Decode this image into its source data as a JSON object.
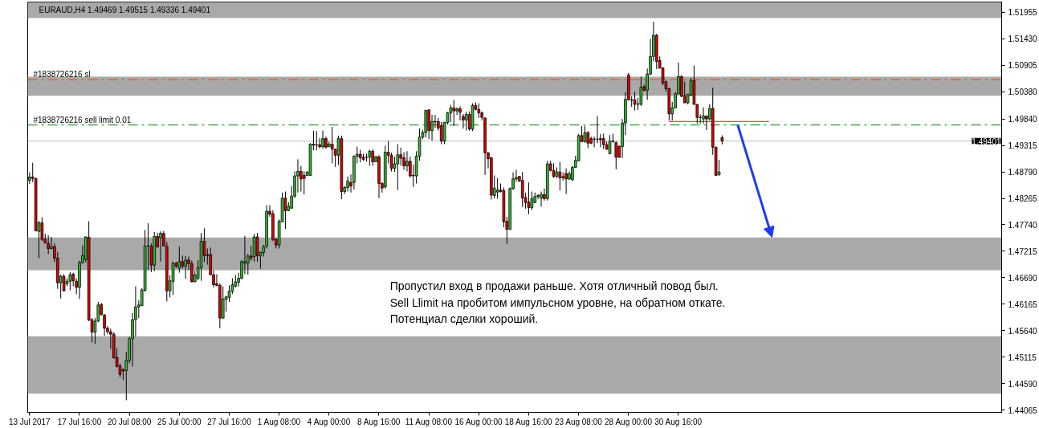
{
  "chart_data": {
    "type": "candlestick",
    "title": "EURAUD,H4 1.49469 1.49515 1.49336 1.49401",
    "categories": [
      "13 Jul 2017",
      null,
      null,
      null,
      null,
      null,
      null,
      null,
      null,
      null,
      null,
      null,
      null,
      null,
      null,
      null,
      "17 Jul 16:00",
      null,
      null,
      null,
      null,
      null,
      null,
      null,
      null,
      null,
      null,
      null,
      null,
      null,
      null,
      null,
      "20 Jul 08:00",
      null,
      null,
      null,
      null,
      null,
      null,
      null,
      null,
      null,
      null,
      null,
      null,
      null,
      null,
      null,
      "25 Jul 00:00",
      null,
      null,
      null,
      null,
      null,
      null,
      null,
      null,
      null,
      null,
      null,
      null,
      null,
      null,
      null,
      "27 Jul 16:00",
      null,
      null,
      null,
      null,
      null,
      null,
      null,
      null,
      null,
      null,
      null,
      null,
      null,
      null,
      null,
      "1 Aug 08:00",
      null,
      null,
      null,
      null,
      null,
      null,
      null,
      null,
      null,
      null,
      null,
      null,
      null,
      null,
      null,
      "4 Aug 00:00",
      null,
      null,
      null,
      null,
      null,
      null,
      null,
      null,
      null,
      null,
      null,
      null,
      null,
      null,
      null,
      "8 Aug 16:00",
      null,
      null,
      null,
      null,
      null,
      null,
      null,
      null,
      null,
      null,
      null,
      null,
      null,
      null,
      null,
      "11 Aug 08:00",
      null,
      null,
      null,
      null,
      null,
      null,
      null,
      null,
      null,
      null,
      null,
      null,
      null,
      null,
      null,
      "16 Aug 00:00",
      null,
      null,
      null,
      null,
      null,
      null,
      null,
      null,
      null,
      null,
      null,
      null,
      null,
      null,
      null,
      "18 Aug 16:00",
      null,
      null,
      null,
      null,
      null,
      null,
      null,
      null,
      null,
      null,
      null,
      null,
      null,
      null,
      null,
      "23 Aug 08:00",
      null,
      null,
      null,
      null,
      null,
      null,
      null,
      null,
      null,
      null,
      null,
      null,
      null,
      null,
      null,
      "28 Aug 00:00",
      null,
      null,
      null,
      null,
      null,
      null,
      null,
      null,
      null,
      null,
      null,
      null,
      null,
      null,
      null,
      "30 Aug 16:00",
      null,
      null,
      null,
      null,
      null,
      null,
      null,
      null,
      null,
      null,
      null,
      null,
      null,
      null,
      null,
      null,
      null,
      null,
      null,
      null,
      null,
      null,
      null,
      null,
      null,
      null,
      null,
      null,
      null,
      null,
      null,
      null,
      null,
      null,
      null,
      null,
      null,
      null,
      null,
      null,
      null,
      null,
      null,
      null,
      null,
      null,
      null,
      null,
      null,
      null,
      null,
      null,
      null,
      null,
      null,
      null,
      null,
      null,
      null,
      null,
      null,
      null,
      null,
      null,
      null,
      null,
      null,
      null,
      null,
      null,
      null,
      null,
      null,
      null,
      null,
      null,
      null,
      null,
      null,
      null,
      null,
      null,
      null,
      null,
      null,
      null,
      null,
      null,
      null,
      null,
      null,
      null,
      null,
      null,
      null,
      null,
      null,
      null,
      null,
      null,
      null,
      null,
      null
    ],
    "ohlc": [
      [
        1.4862,
        1.4878,
        1.4855,
        1.4869
      ],
      [
        1.4869,
        1.4897,
        1.4859,
        1.4866
      ],
      [
        1.4866,
        1.4867,
        1.4761,
        1.4762
      ],
      [
        1.4761,
        1.4782,
        1.4708,
        1.4778
      ],
      [
        1.4778,
        1.4789,
        1.4742,
        1.4745
      ],
      [
        1.4745,
        1.4756,
        1.4737,
        1.4738
      ],
      [
        1.4737,
        1.4753,
        1.4716,
        1.4727
      ],
      [
        1.4727,
        1.475,
        1.4725,
        1.4731
      ],
      [
        1.4731,
        1.4737,
        1.47,
        1.4708
      ],
      [
        1.4708,
        1.472,
        1.4647,
        1.4659
      ],
      [
        1.4659,
        1.4675,
        1.4628,
        1.4672
      ],
      [
        1.4672,
        1.4676,
        1.4642,
        1.4643
      ],
      [
        1.4657,
        1.4668,
        1.4652,
        1.4662
      ],
      [
        1.4662,
        1.468,
        1.4644,
        1.4675
      ],
      [
        1.4676,
        1.4679,
        1.4652,
        1.4663
      ],
      [
        1.4662,
        1.4668,
        1.4636,
        1.465
      ],
      [
        1.465,
        1.4703,
        1.4627,
        1.4699
      ],
      [
        1.4699,
        1.4733,
        1.4697,
        1.4713
      ],
      [
        1.4705,
        1.4751,
        1.47,
        1.475
      ],
      [
        1.4749,
        1.4781,
        1.4583,
        1.4585
      ],
      [
        1.4586,
        1.4589,
        1.4541,
        1.4561
      ],
      [
        1.4561,
        1.4589,
        1.4538,
        1.4583
      ],
      [
        1.4583,
        1.4621,
        1.4581,
        1.4615
      ],
      [
        1.4616,
        1.4619,
        1.4594,
        1.4596
      ],
      [
        1.4595,
        1.4597,
        1.4554,
        1.4569
      ],
      [
        1.4569,
        1.4573,
        1.4557,
        1.4562
      ],
      [
        1.4562,
        1.4568,
        1.4528,
        1.4557
      ],
      [
        1.4557,
        1.4561,
        1.4509,
        1.451
      ],
      [
        1.4511,
        1.4529,
        1.4491,
        1.4493
      ],
      [
        1.4494,
        1.4499,
        1.4472,
        1.4477
      ],
      [
        1.4487,
        1.4489,
        1.4466,
        1.4484
      ],
      [
        1.4485,
        1.4522,
        1.4426,
        1.4505
      ],
      [
        1.4505,
        1.4552,
        1.4499,
        1.4548
      ],
      [
        1.4548,
        1.4599,
        1.4493,
        1.4586
      ],
      [
        1.4586,
        1.4652,
        1.4552,
        1.4611
      ],
      [
        1.4611,
        1.4624,
        1.4589,
        1.4615
      ],
      [
        1.4614,
        1.4648,
        1.4613,
        1.4645
      ],
      [
        1.4644,
        1.4764,
        1.4641,
        1.4732
      ],
      [
        1.4732,
        1.4777,
        1.4684,
        1.4732
      ],
      [
        1.4732,
        1.4737,
        1.468,
        1.4694
      ],
      [
        1.4694,
        1.476,
        1.4682,
        1.4751
      ],
      [
        1.4751,
        1.4758,
        1.4729,
        1.473
      ],
      [
        1.4748,
        1.4761,
        1.4701,
        1.4757
      ],
      [
        1.4757,
        1.4762,
        1.4731,
        1.4732
      ],
      [
        1.4731,
        1.474,
        1.4622,
        1.4643
      ],
      [
        1.4643,
        1.4674,
        1.463,
        1.4663
      ],
      [
        1.4662,
        1.4701,
        1.4635,
        1.4698
      ],
      [
        1.4698,
        1.47,
        1.4689,
        1.4692
      ],
      [
        1.4688,
        1.4731,
        1.4679,
        1.4701
      ],
      [
        1.4701,
        1.4713,
        1.4687,
        1.4692
      ],
      [
        1.4692,
        1.4712,
        1.4667,
        1.4704
      ],
      [
        1.4704,
        1.4711,
        1.4684,
        1.4697
      ],
      [
        1.4697,
        1.4703,
        1.466,
        1.4661
      ],
      [
        1.4661,
        1.4684,
        1.466,
        1.4675
      ],
      [
        1.4668,
        1.4704,
        1.4664,
        1.4689
      ],
      [
        1.4689,
        1.4758,
        1.4663,
        1.4741
      ],
      [
        1.4741,
        1.4767,
        1.47,
        1.4713
      ],
      [
        1.4715,
        1.4727,
        1.4695,
        1.4713
      ],
      [
        1.4715,
        1.4729,
        1.4674,
        1.4675
      ],
      [
        1.4675,
        1.4684,
        1.465,
        1.4655
      ],
      [
        1.4657,
        1.4676,
        1.4652,
        1.4654
      ],
      [
        1.4654,
        1.4658,
        1.4569,
        1.4589
      ],
      [
        1.4589,
        1.4652,
        1.4588,
        1.4627
      ],
      [
        1.4626,
        1.4633,
        1.4602,
        1.4631
      ],
      [
        1.463,
        1.4654,
        1.4621,
        1.4642
      ],
      [
        1.4642,
        1.4668,
        1.4637,
        1.4655
      ],
      [
        1.4652,
        1.4674,
        1.465,
        1.4661
      ],
      [
        1.466,
        1.4679,
        1.4652,
        1.4668
      ],
      [
        1.4668,
        1.4704,
        1.4666,
        1.4701
      ],
      [
        1.4698,
        1.4752,
        1.4676,
        1.4701
      ],
      [
        1.4698,
        1.4716,
        1.4675,
        1.4712
      ],
      [
        1.4712,
        1.4732,
        1.4703,
        1.4708
      ],
      [
        1.4711,
        1.4756,
        1.4701,
        1.475
      ],
      [
        1.475,
        1.4758,
        1.4701,
        1.4713
      ],
      [
        1.4713,
        1.4721,
        1.4687,
        1.4719
      ],
      [
        1.4719,
        1.4734,
        1.4711,
        1.4731
      ],
      [
        1.4732,
        1.4813,
        1.4727,
        1.4801
      ],
      [
        1.4801,
        1.4813,
        1.479,
        1.4795
      ],
      [
        1.4796,
        1.4803,
        1.4742,
        1.4745
      ],
      [
        1.4745,
        1.4748,
        1.4727,
        1.4734
      ],
      [
        1.4734,
        1.4785,
        1.4727,
        1.4781
      ],
      [
        1.478,
        1.4838,
        1.478,
        1.4827
      ],
      [
        1.4827,
        1.484,
        1.4766,
        1.4802
      ],
      [
        1.4802,
        1.4819,
        1.4801,
        1.4811
      ],
      [
        1.4807,
        1.4851,
        1.4806,
        1.4831
      ],
      [
        1.4831,
        1.488,
        1.4827,
        1.4871
      ],
      [
        1.4871,
        1.4904,
        1.4838,
        1.488
      ],
      [
        1.488,
        1.4891,
        1.484,
        1.4865
      ],
      [
        1.4872,
        1.488,
        1.4834,
        1.4866
      ],
      [
        1.4872,
        1.488,
        1.4872,
        1.4879
      ],
      [
        1.4872,
        1.4936,
        1.4872,
        1.4934
      ],
      [
        1.4934,
        1.4961,
        1.4922,
        1.4932
      ],
      [
        1.4932,
        1.496,
        1.4922,
        1.4933
      ],
      [
        1.4933,
        1.4946,
        1.4925,
        1.4929
      ],
      [
        1.4929,
        1.4961,
        1.4925,
        1.4945
      ],
      [
        1.4945,
        1.4949,
        1.4925,
        1.4928
      ],
      [
        1.4929,
        1.4939,
        1.4928,
        1.4934
      ],
      [
        1.4934,
        1.4968,
        1.4896,
        1.4924
      ],
      [
        1.4924,
        1.4925,
        1.4889,
        1.4912
      ],
      [
        1.4912,
        1.4951,
        1.4893,
        1.4945
      ],
      [
        1.4945,
        1.4951,
        1.4825,
        1.484
      ],
      [
        1.484,
        1.4851,
        1.4835,
        1.4848
      ],
      [
        1.4848,
        1.487,
        1.484,
        1.4861
      ],
      [
        1.4858,
        1.4874,
        1.4838,
        1.4851
      ],
      [
        1.4858,
        1.4912,
        1.4844,
        1.491
      ],
      [
        1.491,
        1.4929,
        1.4896,
        1.4914
      ],
      [
        1.4914,
        1.4923,
        1.4898,
        1.4907
      ],
      [
        1.4908,
        1.4915,
        1.4901,
        1.4904
      ],
      [
        1.4908,
        1.4915,
        1.4899,
        1.4908
      ],
      [
        1.4908,
        1.4923,
        1.4891,
        1.492
      ],
      [
        1.492,
        1.4924,
        1.4891,
        1.4899
      ],
      [
        1.4899,
        1.4911,
        1.4898,
        1.4909
      ],
      [
        1.4909,
        1.4912,
        1.4827,
        1.4856
      ],
      [
        1.4856,
        1.4859,
        1.4838,
        1.4847
      ],
      [
        1.4849,
        1.4931,
        1.4846,
        1.4918
      ],
      [
        1.4918,
        1.494,
        1.4896,
        1.4912
      ],
      [
        1.4912,
        1.4917,
        1.488,
        1.4886
      ],
      [
        1.4886,
        1.4909,
        1.4879,
        1.4895
      ],
      [
        1.4895,
        1.4934,
        1.4843,
        1.4913
      ],
      [
        1.4913,
        1.4927,
        1.4892,
        1.4906
      ],
      [
        1.4907,
        1.4918,
        1.4883,
        1.4891
      ],
      [
        1.4891,
        1.492,
        1.488,
        1.49
      ],
      [
        1.49,
        1.4909,
        1.4868,
        1.4871
      ],
      [
        1.4872,
        1.4893,
        1.4849,
        1.4871
      ],
      [
        1.4871,
        1.492,
        1.4856,
        1.491
      ],
      [
        1.491,
        1.4965,
        1.4901,
        1.4948
      ],
      [
        1.4948,
        1.4962,
        1.4944,
        1.4957
      ],
      [
        1.4957,
        1.5002,
        1.4947,
        1.5001
      ],
      [
        1.5002,
        1.5003,
        1.4944,
        1.4961
      ],
      [
        1.4961,
        1.4992,
        1.4941,
        1.4979
      ],
      [
        1.4979,
        1.4992,
        1.4966,
        1.4978
      ],
      [
        1.4979,
        1.4986,
        1.4961,
        1.4966
      ],
      [
        1.4971,
        1.4978,
        1.4934,
        1.494
      ],
      [
        1.494,
        1.4978,
        1.4934,
        1.4977
      ],
      [
        1.4977,
        1.4998,
        1.4973,
        1.4996
      ],
      [
        1.4996,
        1.5012,
        1.4978,
        1.5006
      ],
      [
        1.5006,
        1.5022,
        1.497,
        1.5
      ],
      [
        1.5,
        1.5007,
        1.4992,
        1.5004
      ],
      [
        1.5004,
        1.5009,
        1.4981,
        1.4997
      ],
      [
        1.4989,
        1.4994,
        1.4965,
        1.4982
      ],
      [
        1.4982,
        1.4998,
        1.4961,
        1.4993
      ],
      [
        1.4993,
        1.4999,
        1.4961,
        1.4964
      ],
      [
        1.4964,
        1.5015,
        1.496,
        1.5011
      ],
      [
        1.5011,
        1.5017,
        1.5001,
        1.5003
      ],
      [
        1.5003,
        1.5015,
        1.4986,
        1.4996
      ],
      [
        1.4996,
        1.4999,
        1.4981,
        1.4987
      ],
      [
        1.4986,
        1.4987,
        1.4873,
        1.4917
      ],
      [
        1.4917,
        1.4918,
        1.4886,
        1.4905
      ],
      [
        1.4907,
        1.4908,
        1.4824,
        1.4833
      ],
      [
        1.4832,
        1.4872,
        1.4826,
        1.4847
      ],
      [
        1.4839,
        1.4867,
        1.4826,
        1.4843
      ],
      [
        1.4843,
        1.4856,
        1.4838,
        1.484
      ],
      [
        1.4842,
        1.4848,
        1.4769,
        1.478
      ],
      [
        1.4781,
        1.479,
        1.4736,
        1.4765
      ],
      [
        1.4765,
        1.4848,
        1.4764,
        1.4846
      ],
      [
        1.4846,
        1.4878,
        1.4843,
        1.4865
      ],
      [
        1.4865,
        1.4883,
        1.4859,
        1.4868
      ],
      [
        1.487,
        1.4871,
        1.4859,
        1.4861
      ],
      [
        1.4862,
        1.4879,
        1.4809,
        1.4827
      ],
      [
        1.4828,
        1.4838,
        1.4806,
        1.4818
      ],
      [
        1.4819,
        1.4858,
        1.4795,
        1.4808
      ],
      [
        1.4808,
        1.484,
        1.4803,
        1.4826
      ],
      [
        1.4818,
        1.4838,
        1.4817,
        1.483
      ],
      [
        1.483,
        1.4835,
        1.4825,
        1.4832
      ],
      [
        1.4827,
        1.484,
        1.481,
        1.4834
      ],
      [
        1.4834,
        1.4846,
        1.4822,
        1.4826
      ],
      [
        1.4826,
        1.4901,
        1.4822,
        1.4895
      ],
      [
        1.4895,
        1.4901,
        1.488,
        1.4882
      ],
      [
        1.4882,
        1.4896,
        1.4867,
        1.487
      ],
      [
        1.487,
        1.4888,
        1.4867,
        1.4879
      ],
      [
        1.4879,
        1.4899,
        1.4842,
        1.4867
      ],
      [
        1.4867,
        1.4878,
        1.4862,
        1.487
      ],
      [
        1.4876,
        1.4886,
        1.4835,
        1.4865
      ],
      [
        1.4865,
        1.488,
        1.4863,
        1.4875
      ],
      [
        1.4863,
        1.4891,
        1.4862,
        1.4888
      ],
      [
        1.4888,
        1.4911,
        1.4887,
        1.4902
      ],
      [
        1.4901,
        1.4954,
        1.4901,
        1.4951
      ],
      [
        1.4951,
        1.497,
        1.4939,
        1.4939
      ],
      [
        1.4939,
        1.497,
        1.4937,
        1.4957
      ],
      [
        1.4957,
        1.496,
        1.4926,
        1.4936
      ],
      [
        1.4945,
        1.4949,
        1.4934,
        1.4936
      ],
      [
        1.4944,
        1.4949,
        1.4928,
        1.4944
      ],
      [
        1.4944,
        1.499,
        1.4936,
        1.4944
      ],
      [
        1.4945,
        1.4954,
        1.4928,
        1.4943
      ],
      [
        1.4945,
        1.4955,
        1.4924,
        1.4933
      ],
      [
        1.4933,
        1.4939,
        1.4923,
        1.4924
      ],
      [
        1.4915,
        1.4952,
        1.4915,
        1.494
      ],
      [
        1.494,
        1.4955,
        1.4937,
        1.4939
      ],
      [
        1.4937,
        1.494,
        1.4884,
        1.4908
      ],
      [
        1.493,
        1.4931,
        1.4907,
        1.4908
      ],
      [
        1.4929,
        1.4984,
        1.4906,
        1.4976
      ],
      [
        1.4976,
        1.5037,
        1.4952,
        1.5023
      ],
      [
        1.5071,
        1.5075,
        1.5021,
        1.5022
      ],
      [
        1.5022,
        1.5029,
        1.5008,
        1.5021
      ],
      [
        1.5022,
        1.5038,
        1.5001,
        1.5013
      ],
      [
        1.5014,
        1.5026,
        1.5002,
        1.5013
      ],
      [
        1.5013,
        1.5068,
        1.501,
        1.5047
      ],
      [
        1.5048,
        1.5052,
        1.5039,
        1.5041
      ],
      [
        1.5041,
        1.5084,
        1.5022,
        1.5073
      ],
      [
        1.5073,
        1.5143,
        1.5071,
        1.5108
      ],
      [
        1.5108,
        1.5177,
        1.5099,
        1.515
      ],
      [
        1.515,
        1.5153,
        1.5083,
        1.5098
      ],
      [
        1.51,
        1.5108,
        1.5084,
        1.5085
      ],
      [
        1.5085,
        1.5087,
        1.5051,
        1.5055
      ],
      [
        1.5058,
        1.506,
        1.5038,
        1.5044
      ],
      [
        1.5044,
        1.5046,
        1.4981,
        1.4994
      ],
      [
        1.4994,
        1.5018,
        1.4981,
        1.5006
      ],
      [
        1.5006,
        1.5037,
        1.5005,
        1.5034
      ],
      [
        1.5034,
        1.5096,
        1.5033,
        1.5068
      ],
      [
        1.5068,
        1.5071,
        1.5027,
        1.5029
      ],
      [
        1.503,
        1.5058,
        1.5015,
        1.5016
      ],
      [
        1.5016,
        1.5034,
        1.5013,
        1.5033
      ],
      [
        1.5031,
        1.5065,
        1.5029,
        1.506
      ],
      [
        1.506,
        1.509,
        1.5012,
        1.5013
      ],
      [
        1.5013,
        1.5013,
        1.4975,
        1.4987
      ],
      [
        1.4987,
        1.4993,
        1.4975,
        1.4987
      ],
      [
        1.4984,
        1.5007,
        1.4975,
        1.499
      ],
      [
        1.499,
        1.4991,
        1.4962,
        1.4984
      ],
      [
        1.4984,
        1.5013,
        1.4981,
        1.5005
      ],
      [
        1.5005,
        1.5046,
        1.4913,
        1.4928
      ],
      [
        1.4928,
        1.4929,
        1.4871,
        1.4872
      ],
      [
        1.4873,
        1.4903,
        1.4872,
        1.4879
      ],
      [
        1.49469,
        1.49515,
        1.49336,
        1.49401
      ],
      null,
      null,
      null,
      null,
      null,
      null,
      null,
      null,
      null,
      null,
      null,
      null,
      null,
      null,
      null,
      null,
      null,
      null,
      null,
      null,
      null,
      null,
      null,
      null,
      null,
      null,
      null,
      null,
      null,
      null,
      null,
      null,
      null,
      null,
      null,
      null,
      null,
      null,
      null,
      null,
      null,
      null,
      null,
      null,
      null,
      null,
      null,
      null,
      null,
      null,
      null,
      null,
      null,
      null,
      null,
      null,
      null,
      null,
      null,
      null,
      null,
      null,
      null,
      null,
      null,
      null,
      null,
      null,
      null,
      null,
      null,
      null,
      null,
      null,
      null,
      null,
      null,
      null,
      null,
      null,
      null,
      null,
      null,
      null,
      null,
      null,
      null,
      null,
      null
    ],
    "colors": [
      "#33bb33",
      "#e00000",
      "#e00000",
      "#33bb33",
      "#e00000",
      "#e00000",
      "#e00000",
      "#33bb33",
      "#e00000",
      "#e00000",
      "#33bb33",
      "#e00000",
      "#33bb33",
      "#33bb33",
      "#e00000",
      "#e00000",
      "#33bb33",
      "#33bb33",
      "#33bb33",
      "#e00000",
      "#e00000",
      "#33bb33",
      "#33bb33",
      "#e00000",
      "#e00000",
      "#e00000",
      "#e00000",
      "#e00000",
      "#e00000",
      "#e00000",
      "#e00000",
      "#33bb33",
      "#33bb33",
      "#33bb33",
      "#33bb33",
      "#33bb33",
      "#33bb33",
      "#33bb33",
      "#000000",
      "#e00000",
      "#33bb33",
      "#e00000",
      "#33bb33",
      "#e00000",
      "#e00000",
      "#33bb33",
      "#33bb33",
      "#e00000",
      "#33bb33",
      "#e00000",
      "#33bb33",
      "#e00000",
      "#e00000",
      "#33bb33",
      "#33bb33",
      "#33bb33",
      "#e00000",
      "#e00000",
      "#e00000",
      "#e00000",
      "#e00000",
      "#e00000",
      "#33bb33",
      "#33bb33",
      "#33bb33",
      "#33bb33",
      "#33bb33",
      "#33bb33",
      "#33bb33",
      "#33bb33",
      "#33bb33",
      "#e00000",
      "#33bb33",
      "#e00000",
      "#33bb33",
      "#33bb33",
      "#33bb33",
      "#e00000",
      "#e00000",
      "#e00000",
      "#33bb33",
      "#33bb33",
      "#e00000",
      "#33bb33",
      "#33bb33",
      "#33bb33",
      "#33bb33",
      "#e00000",
      "#e00000",
      "#33bb33",
      "#33bb33",
      "#e00000",
      "#33bb33",
      "#e00000",
      "#33bb33",
      "#e00000",
      "#33bb33",
      "#e00000",
      "#e00000",
      "#33bb33",
      "#e00000",
      "#33bb33",
      "#33bb33",
      "#e00000",
      "#33bb33",
      "#33bb33",
      "#e00000",
      "#e00000",
      "#000000",
      "#33bb33",
      "#e00000",
      "#33bb33",
      "#e00000",
      "#e00000",
      "#33bb33",
      "#e00000",
      "#e00000",
      "#33bb33",
      "#33bb33",
      "#e00000",
      "#e00000",
      "#33bb33",
      "#e00000",
      "#e00000",
      "#33bb33",
      "#33bb33",
      "#33bb33",
      "#33bb33",
      "#e00000",
      "#33bb33",
      "#e00000",
      "#e00000",
      "#e00000",
      "#33bb33",
      "#33bb33",
      "#33bb33",
      "#e00000",
      "#33bb33",
      "#e00000",
      "#e00000",
      "#33bb33",
      "#e00000",
      "#33bb33",
      "#e00000",
      "#e00000",
      "#e00000",
      "#e00000",
      "#e00000",
      "#e00000",
      "#33bb33",
      "#33bb33",
      "#e00000",
      "#e00000",
      "#e00000",
      "#33bb33",
      "#33bb33",
      "#33bb33",
      "#e00000",
      "#e00000",
      "#e00000",
      "#e00000",
      "#33bb33",
      "#33bb33",
      "#33bb33",
      "#33bb33",
      "#e00000",
      "#33bb33",
      "#e00000",
      "#e00000",
      "#33bb33",
      "#e00000",
      "#33bb33",
      "#e00000",
      "#33bb33",
      "#33bb33",
      "#33bb33",
      "#33bb33",
      "#e00000",
      "#33bb33",
      "#e00000",
      "#e00000",
      "#000000",
      "#000000",
      "#e00000",
      "#e00000",
      "#e00000",
      "#33bb33",
      "#e00000",
      "#e00000",
      "#e00000",
      "#33bb33",
      "#33bb33",
      "#e00000",
      "#e00000",
      "#e00000",
      "#e00000",
      "#33bb33",
      "#e00000",
      "#33bb33",
      "#33bb33",
      "#33bb33",
      "#e00000",
      "#e00000",
      "#e00000",
      "#e00000",
      "#e00000",
      "#33bb33",
      "#33bb33",
      "#33bb33",
      "#e00000",
      "#e00000",
      "#33bb33",
      "#33bb33",
      "#e00000",
      "#e00000",
      "#000000",
      "#33bb33",
      "#e00000",
      "#33bb33",
      "#e00000",
      "#e00000",
      "#33bb33",
      "#e00000",
      null,
      null,
      null,
      null,
      null,
      null,
      null,
      null,
      null,
      null,
      null,
      null,
      null,
      null,
      null,
      null,
      null,
      null,
      null,
      null,
      null,
      null,
      null,
      null,
      null,
      null,
      null,
      null,
      null,
      null,
      null,
      null,
      null,
      null,
      null,
      null,
      null,
      null,
      null,
      null,
      null,
      null,
      null,
      null,
      null,
      null,
      null,
      null,
      null,
      null,
      null,
      null,
      null,
      null,
      null,
      null,
      null,
      null,
      null,
      null,
      null,
      null,
      null,
      null,
      null,
      null,
      null,
      null,
      null,
      null,
      null,
      null,
      null,
      null,
      null,
      null,
      null,
      null,
      null,
      null,
      null,
      null,
      null,
      null,
      null,
      null,
      null,
      null,
      null
    ],
    "series": [
      {
        "type": "line",
        "color": "#ff0000",
        "values": [
          null,
          null,
          null,
          null,
          null,
          null,
          null,
          null,
          null,
          null,
          null,
          null,
          null,
          null,
          null,
          null,
          null,
          null,
          null,
          null,
          null,
          null,
          null,
          null,
          null,
          null,
          null,
          null,
          null,
          null,
          null,
          null,
          null,
          null,
          null,
          null,
          null,
          null,
          null,
          null,
          null,
          null,
          null,
          null,
          null,
          null,
          null,
          null,
          null,
          null,
          null,
          null,
          null,
          null,
          null,
          null,
          null,
          null,
          null,
          null,
          null,
          null,
          null,
          null,
          null,
          null,
          null,
          null,
          null,
          null,
          null,
          null,
          null,
          null,
          null,
          null,
          null,
          null,
          null,
          null,
          null,
          null,
          null,
          null,
          null,
          null,
          null,
          null,
          null,
          null,
          null,
          null,
          null,
          null,
          null,
          null,
          null,
          null,
          null,
          null,
          null,
          null,
          null,
          null,
          null,
          null,
          null,
          null,
          null,
          null,
          null,
          null,
          null,
          null,
          null,
          null,
          null,
          null,
          null,
          null,
          null,
          null,
          null,
          null,
          null,
          null,
          null,
          null,
          null,
          null,
          null,
          null,
          null,
          null,
          null,
          null,
          null,
          null,
          null,
          null,
          null,
          null,
          null,
          null,
          null,
          null,
          null,
          null,
          null,
          null,
          null,
          null,
          null,
          null,
          null,
          null,
          null,
          null,
          null,
          null,
          null,
          null,
          null,
          null,
          null,
          null,
          null,
          null,
          null,
          null,
          null,
          null,
          null,
          null,
          null,
          null,
          null,
          null,
          null,
          null,
          null,
          null,
          null,
          null,
          null,
          null,
          null,
          null,
          null,
          null,
          null,
          null,
          null,
          null,
          null,
          null,
          null,
          null,
          null,
          null,
          null,
          null,
          null,
          null,
          null,
          1.4979,
          1.4979,
          1.4979,
          1.4979,
          1.4979,
          1.4979,
          1.4979,
          1.4979,
          1.4979,
          1.4979,
          1.4979,
          1.4979,
          1.4979,
          1.4979,
          1.4979,
          1.4979,
          1.4979,
          1.4979,
          1.4979,
          1.4979,
          1.4979,
          1.4979,
          1.4979,
          1.4979,
          1.4979,
          1.4979,
          1.4979,
          1.4979,
          1.4979,
          1.4979,
          1.4979,
          1.4979,
          1.4979,
          null,
          null,
          null,
          null,
          null,
          null,
          null,
          null,
          null,
          null,
          null,
          null,
          null,
          null,
          null,
          null,
          null,
          null,
          null,
          null,
          null,
          null,
          null,
          null,
          null,
          null,
          null,
          null,
          null,
          null,
          null,
          null,
          null,
          null,
          null,
          null,
          null,
          null,
          null,
          null,
          null,
          null,
          null,
          null,
          null,
          null,
          null,
          null,
          null,
          null,
          null,
          null,
          null,
          null,
          null,
          null,
          null,
          null,
          null,
          null,
          null,
          null,
          null,
          null,
          null,
          null,
          null,
          null,
          null,
          null,
          null,
          null,
          null,
          null
        ]
      }
    ],
    "ylim": [
      1.4402,
      1.5216
    ],
    "yticks": [
      {
        "value": 1.44065,
        "label": "1.44065"
      },
      {
        "value": 1.4459,
        "label": "1.44590"
      },
      {
        "value": 1.45115,
        "label": "1.45115"
      },
      {
        "value": 1.4564,
        "label": "1.45640"
      },
      {
        "value": 1.46165,
        "label": "1.46165"
      },
      {
        "value": 1.4669,
        "label": "1.46690"
      },
      {
        "value": 1.47215,
        "label": "1.47215"
      },
      {
        "value": 1.4774,
        "label": "1.47740"
      },
      {
        "value": 1.48265,
        "label": "1.48265"
      },
      {
        "value": 1.4879,
        "label": "1.48790"
      },
      {
        "value": 1.49315,
        "label": "1.49315"
      },
      {
        "value": 1.4984,
        "label": "1.49840"
      },
      {
        "value": 1.5038,
        "label": "1.50380"
      },
      {
        "value": 1.50905,
        "label": "1.50905"
      },
      {
        "value": 1.5143,
        "label": "1.51430"
      },
      {
        "value": 1.51955,
        "label": "1.51955"
      }
    ],
    "grid": false,
    "bands": [
      {
        "axis": "y",
        "from": 1.5184,
        "to": 1.5216,
        "color": "#a9a9a9"
      },
      {
        "axis": "y",
        "from": 1.503,
        "to": 1.5068,
        "color": "#a9a9a9"
      },
      {
        "axis": "y",
        "from": 1.4684,
        "to": 1.4749,
        "color": "#a9a9a9"
      },
      {
        "axis": "y",
        "from": 1.4439,
        "to": 1.4553,
        "color": "#a9a9a9"
      }
    ],
    "ref_lines": [
      {
        "axis": "y",
        "value": 1.5062,
        "label": "#1838726216 sl",
        "color": "#ff4500",
        "line_style": "dashdot"
      },
      {
        "axis": "y",
        "value": 1.4972,
        "label": "#1838726216 sell limit 0.01",
        "color": "#008000",
        "line_style": "dashdot"
      },
      {
        "axis": "y",
        "value": 1.49401,
        "label": "1.49401",
        "color": "#c0c0c0",
        "line_style": "solid"
      }
    ],
    "annotations": [
      "Пропустил вход в продажи раньше. Хотя отличный повод был.",
      "Sell Llimit на пробитом импульсном уровне, на обратном откате.",
      "Потенциал сделки хороший."
    ]
  }
}
